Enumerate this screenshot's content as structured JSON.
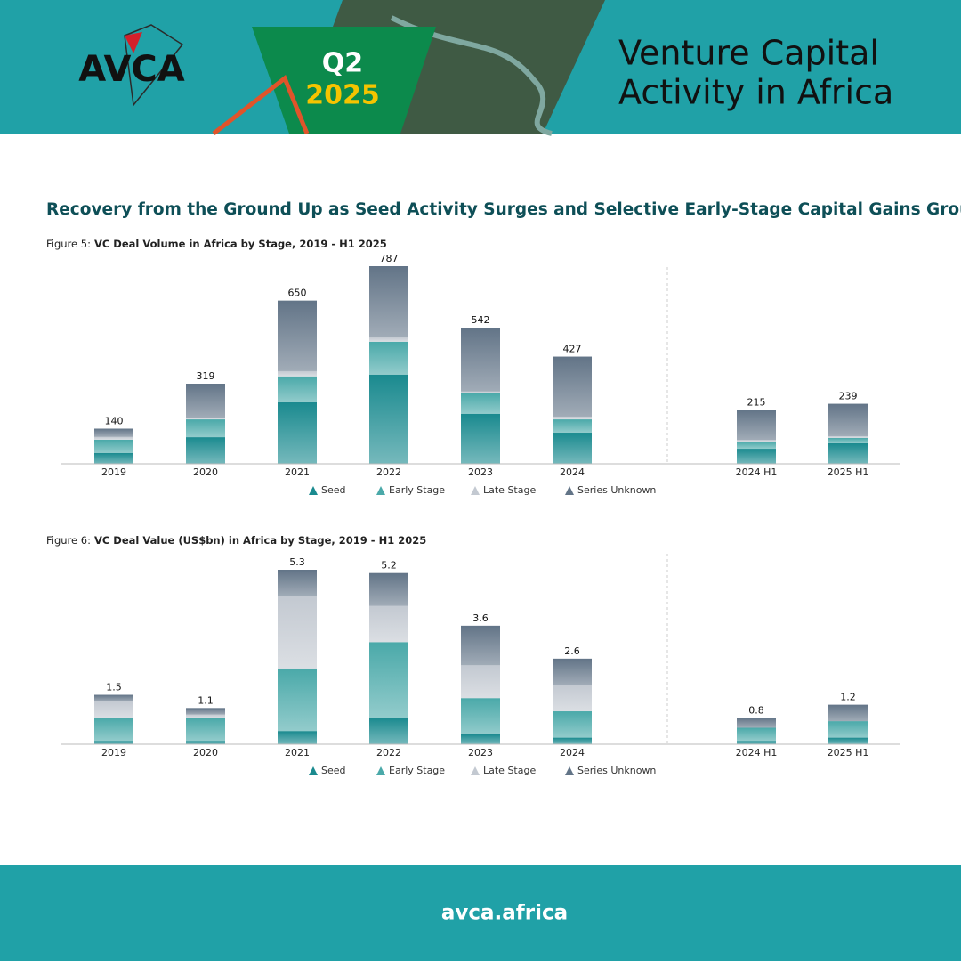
{
  "header": {
    "logo": "AVCA",
    "quarter": "Q2",
    "year": "2025",
    "title_lines": [
      "Venture Capital",
      "Activity in Africa"
    ]
  },
  "headline": "Recovery from the Ground Up as Seed Activity Surges and Selective Early-Stage Capital Gains Ground",
  "chart_data": [
    {
      "type": "stacked_bar",
      "caption_label": "Figure 5:",
      "title": "VC Deal Volume in Africa by Stage, 2019 - H1 2025",
      "categories": [
        "2019",
        "2020",
        "2021",
        "2022",
        "2023",
        "2024",
        "2024 H1",
        "2025 H1"
      ],
      "totals": [
        140,
        319,
        650,
        787,
        542,
        427,
        215,
        239
      ],
      "series": [
        {
          "name": "Seed",
          "color": "#1a8a8f",
          "values": [
            43,
            106,
            245,
            355,
            199,
            124,
            60,
            82
          ]
        },
        {
          "name": "Early Stage",
          "color": "#4aa9a9",
          "values": [
            53,
            71,
            103,
            131,
            82,
            53,
            28,
            21
          ]
        },
        {
          "name": "Late Stage",
          "color": "#c3c9d1",
          "values": [
            11,
            7,
            21,
            18,
            7,
            11,
            7,
            7
          ]
        },
        {
          "name": "Series Unknown",
          "color": "#627487",
          "values": [
            33,
            135,
            281,
            283,
            254,
            239,
            120,
            129
          ]
        }
      ]
    },
    {
      "type": "stacked_bar",
      "caption_label": "Figure 6:",
      "title": "VC Deal Value (US$bn) in Africa by Stage, 2019 - H1 2025",
      "categories": [
        "2019",
        "2020",
        "2021",
        "2022",
        "2023",
        "2024",
        "2024 H1",
        "2025 H1"
      ],
      "totals": [
        1.5,
        1.1,
        5.3,
        5.2,
        3.6,
        2.6,
        0.8,
        1.2
      ],
      "series": [
        {
          "name": "Seed",
          "color": "#1a8a8f",
          "values": [
            0.1,
            0.1,
            0.4,
            0.8,
            0.3,
            0.2,
            0.1,
            0.2
          ]
        },
        {
          "name": "Early Stage",
          "color": "#4aa9a9",
          "values": [
            0.7,
            0.7,
            1.9,
            2.3,
            1.1,
            0.8,
            0.4,
            0.5
          ]
        },
        {
          "name": "Late Stage",
          "color": "#c3c9d1",
          "values": [
            0.5,
            0.1,
            2.2,
            1.1,
            1.0,
            0.8,
            0,
            0
          ]
        },
        {
          "name": "Series Unknown",
          "color": "#627487",
          "values": [
            0.2,
            0.2,
            0.8,
            1.0,
            1.2,
            0.8,
            0.3,
            0.5
          ]
        }
      ]
    }
  ],
  "footer": {
    "url": "avca.africa"
  }
}
